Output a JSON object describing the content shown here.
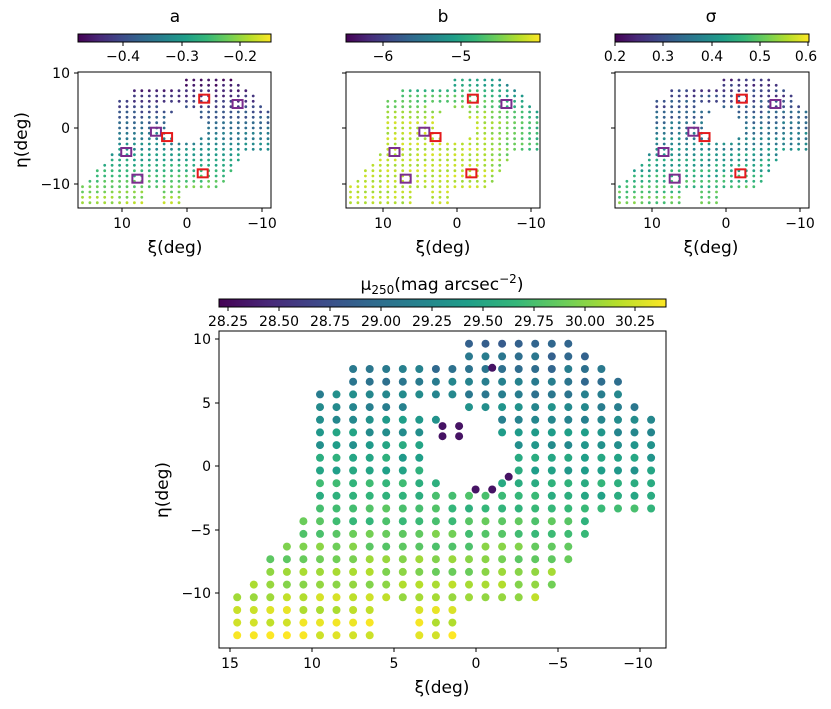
{
  "colors": {
    "viridis": [
      "#440154",
      "#482878",
      "#3e4989",
      "#31688e",
      "#26828e",
      "#1f9e89",
      "#35b779",
      "#6ece58",
      "#b5de2b",
      "#fde725"
    ],
    "red_marker": "#e41a1c",
    "purple_marker": "#7b2d8e"
  },
  "chart_data": [
    {
      "id": "panel-a",
      "type": "scatter",
      "title": "a",
      "xlabel": "ξ(deg)",
      "ylabel": "η(deg)",
      "xlim": [
        15,
        -11
      ],
      "ylim": [
        -14.5,
        11
      ],
      "xticks": [
        "10",
        "0",
        "−10"
      ],
      "yticks": [
        "10",
        "0",
        "−10"
      ],
      "colorbar": {
        "range": [
          -0.48,
          -0.15
        ],
        "ticks": [
          "−0.4",
          "−0.3",
          "−0.2"
        ]
      },
      "value_trend": "values rise from about −0.45 in the north-east to about −0.2 in the south-west",
      "red_markers": [
        [
          -2.0,
          6.0
        ],
        [
          3.0,
          -1.2
        ],
        [
          -1.8,
          -8.0
        ]
      ],
      "purple_markers": [
        [
          -6.5,
          5.0
        ],
        [
          4.5,
          -0.2
        ],
        [
          8.5,
          -4.0
        ],
        [
          7.0,
          -9.0
        ]
      ]
    },
    {
      "id": "panel-b",
      "type": "scatter",
      "title": "b",
      "xlabel": "ξ(deg)",
      "ylabel": "",
      "xlim": [
        15,
        -11
      ],
      "ylim": [
        -14.5,
        11
      ],
      "xticks": [
        "10",
        "0",
        "−10"
      ],
      "yticks": [],
      "colorbar": {
        "range": [
          -6.6,
          -4.1
        ],
        "ticks": [
          "−6",
          "−5"
        ]
      },
      "value_trend": "mostly high values (about −4.5) with lower values toward the north-east",
      "red_markers": [
        [
          -2.0,
          6.0
        ],
        [
          3.0,
          -1.2
        ],
        [
          -1.8,
          -8.0
        ]
      ],
      "purple_markers": [
        [
          -6.5,
          5.0
        ],
        [
          4.5,
          -0.2
        ],
        [
          8.5,
          -4.0
        ],
        [
          7.0,
          -9.0
        ]
      ]
    },
    {
      "id": "panel-sigma",
      "type": "scatter",
      "title": "σ",
      "xlabel": "ξ(deg)",
      "ylabel": "",
      "xlim": [
        15,
        -11
      ],
      "ylim": [
        -14.5,
        11
      ],
      "xticks": [
        "10",
        "0",
        "−10"
      ],
      "yticks": [],
      "colorbar": {
        "range": [
          0.2,
          0.6
        ],
        "ticks": [
          "0.2",
          "0.3",
          "0.4",
          "0.5",
          "0.6"
        ]
      },
      "value_trend": "low values (about 0.25) in the north rising to about 0.5 in the south",
      "red_markers": [
        [
          -2.0,
          6.0
        ],
        [
          3.0,
          -1.2
        ],
        [
          -1.8,
          -8.0
        ]
      ],
      "purple_markers": [
        [
          -6.5,
          5.0
        ],
        [
          4.5,
          -0.2
        ],
        [
          8.5,
          -4.0
        ],
        [
          7.0,
          -9.0
        ]
      ]
    },
    {
      "id": "panel-mu",
      "type": "scatter",
      "title": "μ250(mag arcsec−2)",
      "title_main": "μ",
      "title_sub": "250",
      "title_unit": "(mag arcsec",
      "title_exp": "−2",
      "title_close": ")",
      "xlabel": "ξ(deg)",
      "ylabel": "η(deg)",
      "xlim": [
        15.5,
        -11.5
      ],
      "ylim": [
        -14.5,
        10.5
      ],
      "xticks": [
        "15",
        "10",
        "5",
        "0",
        "−5",
        "−10"
      ],
      "yticks": [
        "10",
        "5",
        "0",
        "−5",
        "−10"
      ],
      "colorbar": {
        "range": [
          28.2,
          30.4
        ],
        "ticks": [
          "28.25",
          "28.50",
          "28.75",
          "29.00",
          "29.25",
          "29.50",
          "29.75",
          "30.00",
          "30.25"
        ]
      },
      "value_trend": "brightness rises from about 29.2 in the north to about 30.3 in the south-west",
      "dark_points": [
        [
          2.0,
          3.0
        ],
        [
          2.0,
          2.2
        ],
        [
          1.0,
          2.2
        ],
        [
          1.0,
          3.0
        ],
        [
          -1.0,
          7.6
        ],
        [
          -2.0,
          -1.0
        ],
        [
          -1.0,
          -2.0
        ],
        [
          0.0,
          -2.0
        ]
      ]
    }
  ]
}
